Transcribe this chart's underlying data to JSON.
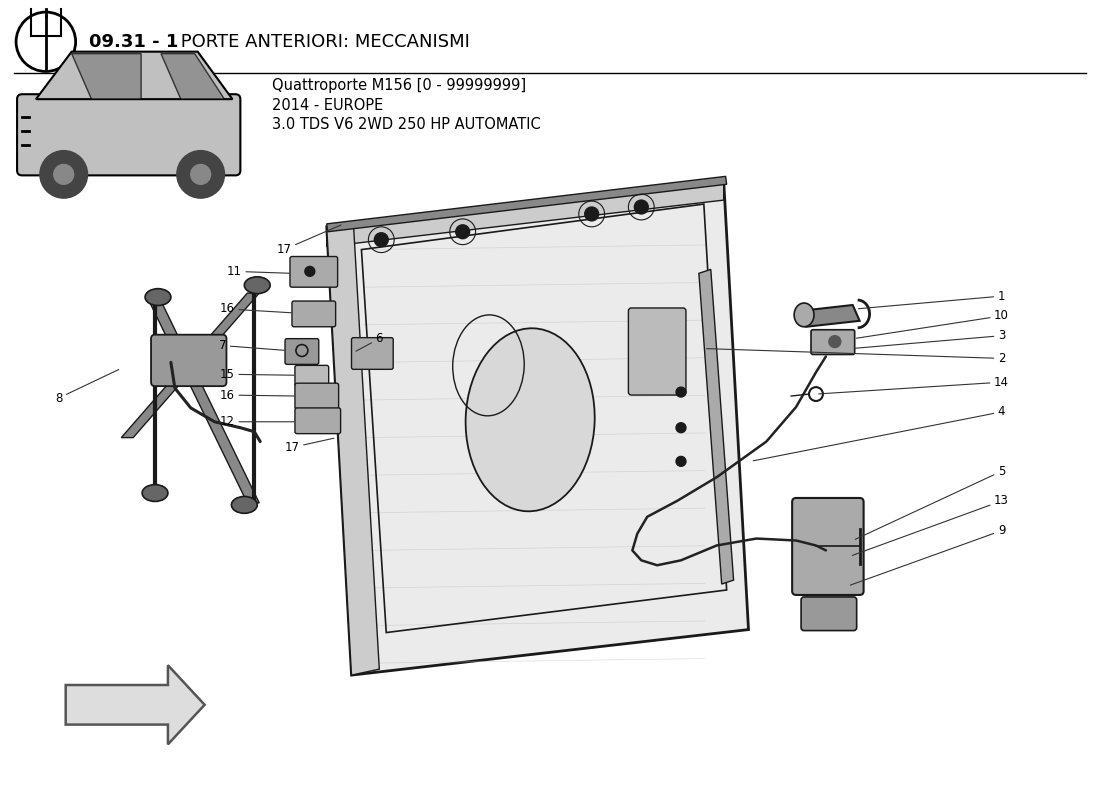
{
  "title_bold": "09.31 - 1",
  "title_rest": " PORTE ANTERIORI: MECCANISMI",
  "subtitle_line1": "Quattroporte M156 [0 - 99999999]",
  "subtitle_line2": "2014 - EUROPE",
  "subtitle_line3": "3.0 TDS V6 2WD 250 HP AUTOMATIC",
  "bg_color": "#ffffff",
  "text_color": "#000000",
  "diagram_color": "#1a1a1a",
  "line_color": "#333333",
  "fill_light": "#e8e8e8",
  "fill_mid": "#aaaaaa",
  "fill_dark": "#666666"
}
